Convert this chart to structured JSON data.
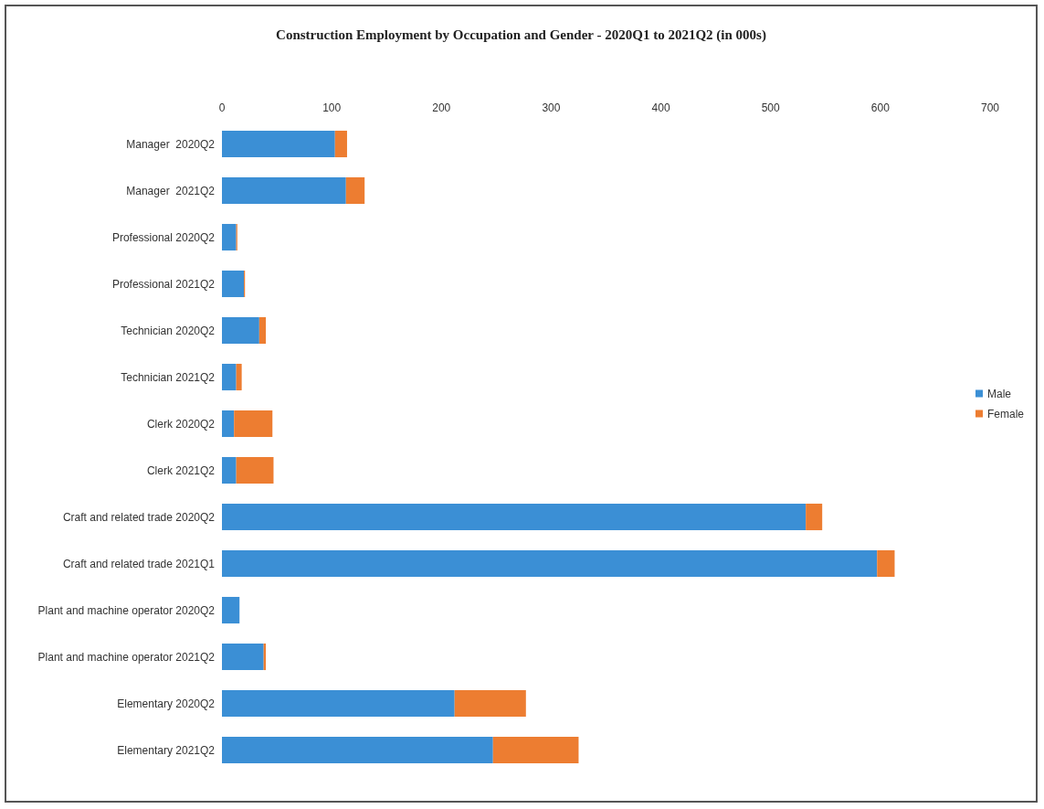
{
  "chart_data": {
    "type": "bar",
    "orientation": "horizontal",
    "stacked": true,
    "title": "Construction Employment by Occupation and Gender - 2020Q1 to 2021Q2 (in 000s)",
    "categories": [
      "Manager  2020Q2",
      "Manager  2021Q2",
      "Professional 2020Q2",
      "Professional 2021Q2",
      "Technician 2020Q2",
      "Technician 2021Q2",
      "Clerk 2020Q2",
      "Clerk 2021Q2",
      "Craft and related trade 2020Q2",
      "Craft and related trade 2021Q1",
      "Plant and machine operator 2020Q2",
      "Plant and machine operator 2021Q2",
      "Elementary 2020Q2",
      "Elementary 2021Q2"
    ],
    "series": [
      {
        "name": "Male",
        "color": "#3b8fd5",
        "values": [
          103,
          113,
          13,
          20,
          34,
          13,
          11,
          13,
          532,
          597,
          16,
          38,
          212,
          247
        ]
      },
      {
        "name": "Female",
        "color": "#ed7d31",
        "values": [
          11,
          17,
          1,
          1,
          6,
          5,
          35,
          34,
          15,
          16,
          0,
          2,
          65,
          78
        ]
      }
    ],
    "xlim": [
      0,
      700
    ],
    "xticks": [
      0,
      100,
      200,
      300,
      400,
      500,
      600,
      700
    ],
    "grid": false,
    "legend": "right"
  }
}
